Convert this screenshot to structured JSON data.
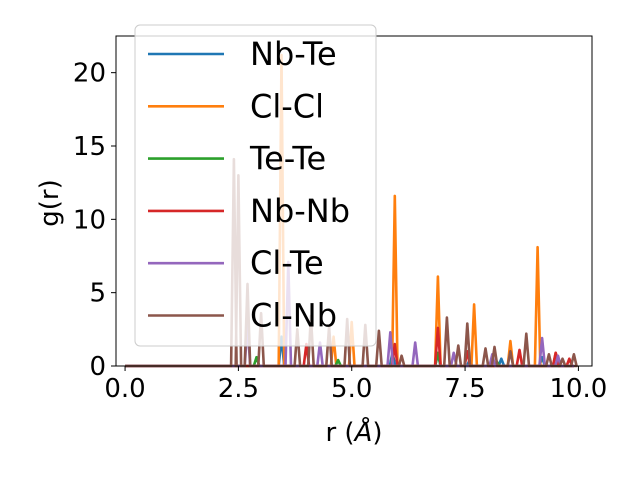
{
  "chart_data": {
    "type": "line",
    "xlabel_main": "r (",
    "xlabel_unit": "Å",
    "xlabel_close": ")",
    "ylabel": "g(r)",
    "xlim": [
      -0.2,
      10.3
    ],
    "ylim": [
      0,
      22.5
    ],
    "xticks": [
      0.0,
      2.5,
      5.0,
      7.5,
      10.0
    ],
    "xtick_labels": [
      "0.0",
      "2.5",
      "5.0",
      "7.5",
      "10.0"
    ],
    "yticks": [
      0,
      5,
      10,
      15,
      20
    ],
    "ytick_labels": [
      "0",
      "5",
      "10",
      "15",
      "20"
    ],
    "grid": false,
    "legend_position": "upper-left",
    "series": [
      {
        "name": "Nb-Te",
        "color": "#1f77b4",
        "peaks": [
          [
            3.45,
            2.0
          ],
          [
            5.9,
            0.9
          ],
          [
            6.9,
            0.8
          ],
          [
            7.6,
            0.4
          ],
          [
            8.3,
            0.5
          ],
          [
            9.2,
            0.6
          ]
        ]
      },
      {
        "name": "Cl-Cl",
        "color": "#ff7f0e",
        "peaks": [
          [
            3.45,
            21.2
          ],
          [
            4.6,
            2.0
          ],
          [
            5.0,
            3.0
          ],
          [
            5.95,
            11.6
          ],
          [
            6.9,
            6.1
          ],
          [
            7.7,
            4.2
          ],
          [
            8.5,
            1.7
          ],
          [
            9.1,
            8.1
          ],
          [
            9.5,
            0.9
          ]
        ]
      },
      {
        "name": "Te-Te",
        "color": "#2ca02c",
        "peaks": [
          [
            2.9,
            0.6
          ],
          [
            4.7,
            0.4
          ],
          [
            6.9,
            0.9
          ],
          [
            8.2,
            0.3
          ]
        ]
      },
      {
        "name": "Nb-Nb",
        "color": "#d62728",
        "peaks": [
          [
            4.0,
            1.5
          ],
          [
            5.95,
            1.5
          ],
          [
            6.9,
            2.6
          ],
          [
            7.55,
            1.0
          ],
          [
            8.7,
            1.1
          ],
          [
            9.5,
            0.9
          ],
          [
            9.8,
            0.5
          ]
        ]
      },
      {
        "name": "Cl-Te",
        "color": "#9467bd",
        "peaks": [
          [
            2.7,
            2.9
          ],
          [
            3.6,
            7.1
          ],
          [
            4.3,
            1.6
          ],
          [
            5.85,
            2.3
          ],
          [
            6.4,
            1.6
          ],
          [
            7.25,
            0.9
          ],
          [
            8.1,
            0.8
          ],
          [
            9.2,
            1.9
          ],
          [
            9.55,
            0.7
          ]
        ]
      },
      {
        "name": "Cl-Nb",
        "color": "#8c564b",
        "peaks": [
          [
            2.4,
            14.1
          ],
          [
            2.5,
            13.0
          ],
          [
            2.7,
            5.6
          ],
          [
            3.0,
            3.6
          ],
          [
            3.8,
            2.5
          ],
          [
            4.1,
            3.4
          ],
          [
            4.5,
            2.7
          ],
          [
            4.9,
            3.2
          ],
          [
            5.3,
            2.8
          ],
          [
            5.6,
            2.4
          ],
          [
            6.1,
            0.7
          ],
          [
            7.1,
            3.3
          ],
          [
            7.35,
            1.4
          ],
          [
            7.55,
            2.9
          ],
          [
            7.95,
            1.2
          ],
          [
            8.15,
            1.3
          ],
          [
            8.5,
            1.0
          ],
          [
            8.85,
            2.2
          ],
          [
            9.35,
            0.8
          ],
          [
            9.65,
            0.5
          ],
          [
            9.9,
            0.8
          ]
        ]
      }
    ]
  }
}
